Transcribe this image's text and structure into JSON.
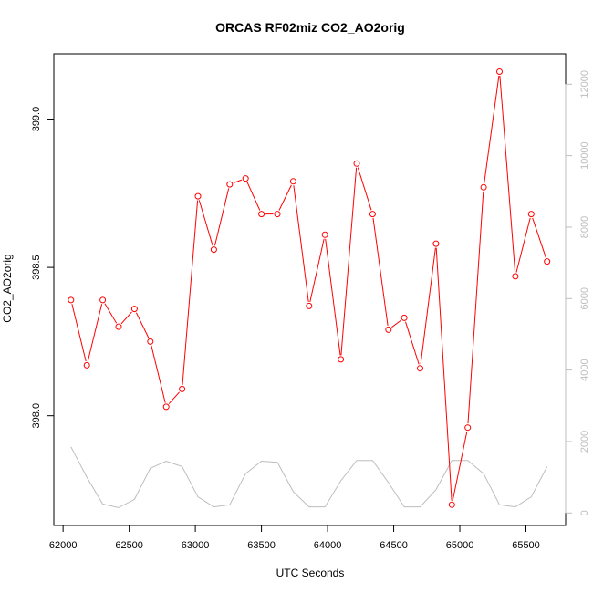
{
  "chart_data": {
    "type": "line",
    "title": "ORCAS RF02miz CO2_AO2orig",
    "xlabel": "UTC Seconds",
    "ylabel": "CO2_AO2orig",
    "xlim": [
      61930,
      65800
    ],
    "ylim": [
      397.63,
      399.22
    ],
    "y2lim": [
      -350,
      12850
    ],
    "x_ticks": [
      62000,
      62500,
      63000,
      63500,
      64000,
      64500,
      65000,
      65500
    ],
    "y_ticks": [
      398.0,
      398.5,
      399.0
    ],
    "y_tick_labels": [
      "398.0",
      "398.5",
      "399.0"
    ],
    "y2_ticks": [
      0,
      2000,
      4000,
      6000,
      8000,
      10000,
      12000
    ],
    "grid": false,
    "series": [
      {
        "color": "#ff0000",
        "marker": "circle-open",
        "x": [
          62060,
          62180,
          62300,
          62420,
          62540,
          62660,
          62780,
          62900,
          63020,
          63140,
          63260,
          63380,
          63500,
          63620,
          63740,
          63860,
          63980,
          64100,
          64220,
          64340,
          64460,
          64580,
          64700,
          64820,
          64940,
          65060,
          65180,
          65300,
          65420,
          65540,
          65660
        ],
        "values": [
          398.39,
          398.17,
          398.39,
          398.3,
          398.36,
          398.25,
          398.03,
          398.09,
          398.74,
          398.56,
          398.78,
          398.8,
          398.68,
          398.68,
          398.79,
          398.37,
          398.61,
          398.19,
          398.85,
          398.68,
          398.29,
          398.33,
          398.16,
          398.58,
          397.7,
          397.96,
          398.77,
          399.16,
          398.47,
          398.68,
          398.52
        ]
      },
      {
        "color": "#bdbdbd",
        "axis": "right",
        "x": [
          62060,
          62180,
          62300,
          62420,
          62540,
          62660,
          62780,
          62900,
          63020,
          63140,
          63260,
          63380,
          63500,
          63620,
          63740,
          63860,
          63980,
          64100,
          64220,
          64340,
          64460,
          64580,
          64700,
          64820,
          64940,
          65060,
          65180,
          65300,
          65420,
          65540,
          65660
        ],
        "values": [
          1850,
          1000,
          250,
          150,
          380,
          1250,
          1450,
          1300,
          450,
          170,
          230,
          1100,
          1450,
          1420,
          600,
          170,
          170,
          900,
          1470,
          1470,
          850,
          170,
          170,
          650,
          1470,
          1470,
          1100,
          230,
          170,
          450,
          1300
        ]
      }
    ]
  }
}
